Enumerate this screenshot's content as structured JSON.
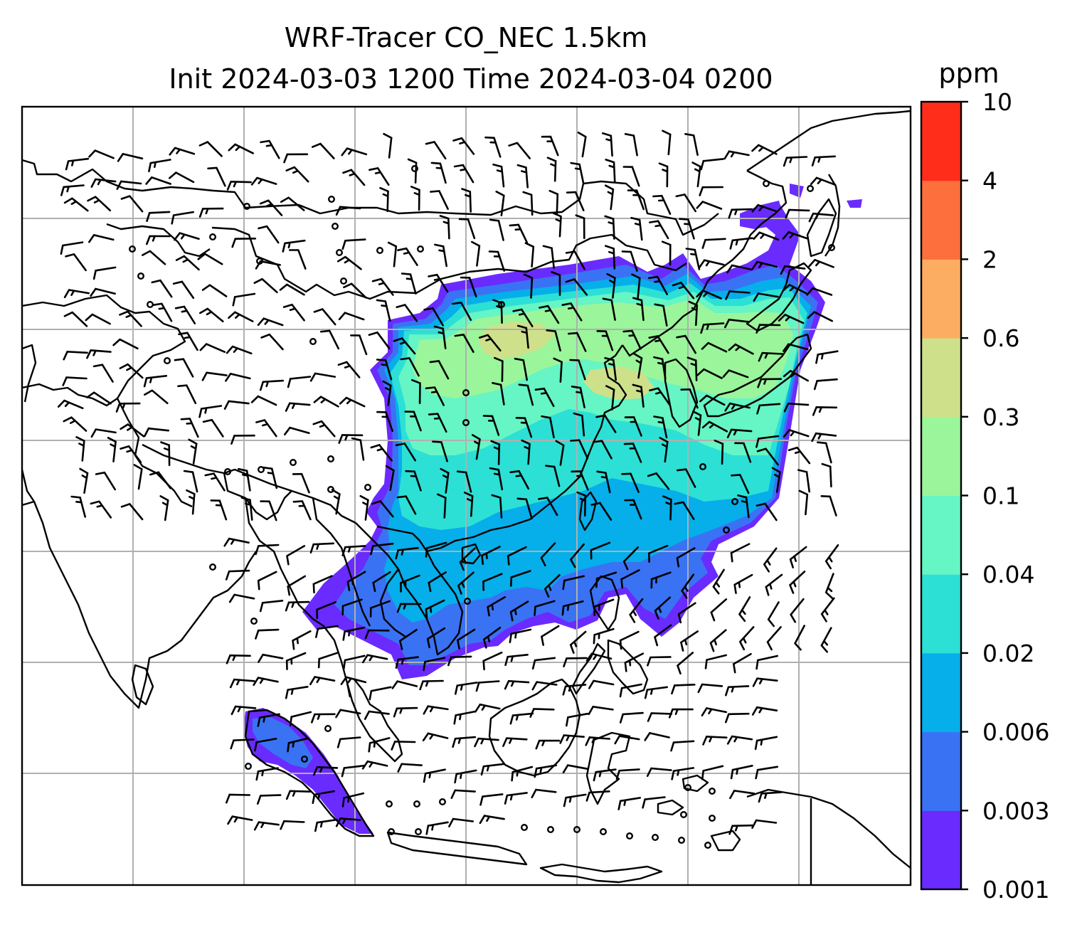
{
  "title": {
    "line1": "WRF-Tracer CO_NEC 1.5km",
    "line2": "Init 2024-03-03 1200 Time 2024-03-04 0200"
  },
  "colorbar": {
    "unit": "ppm",
    "ticks": [
      "0.001",
      "0.003",
      "0.006",
      "0.02",
      "0.04",
      "0.1",
      "0.3",
      "0.6",
      "2",
      "4",
      "10"
    ],
    "colors": [
      "#6a2bff",
      "#3a72f4",
      "#06aeea",
      "#2ce0d6",
      "#66f5c4",
      "#9bf59b",
      "#cfe08a",
      "#fdad61",
      "#fd6f3c",
      "#ff2d1a"
    ]
  },
  "map": {
    "gridline_color": "#b0b0b0",
    "coastline_color": "#000000",
    "barb_color": "#000000"
  }
}
